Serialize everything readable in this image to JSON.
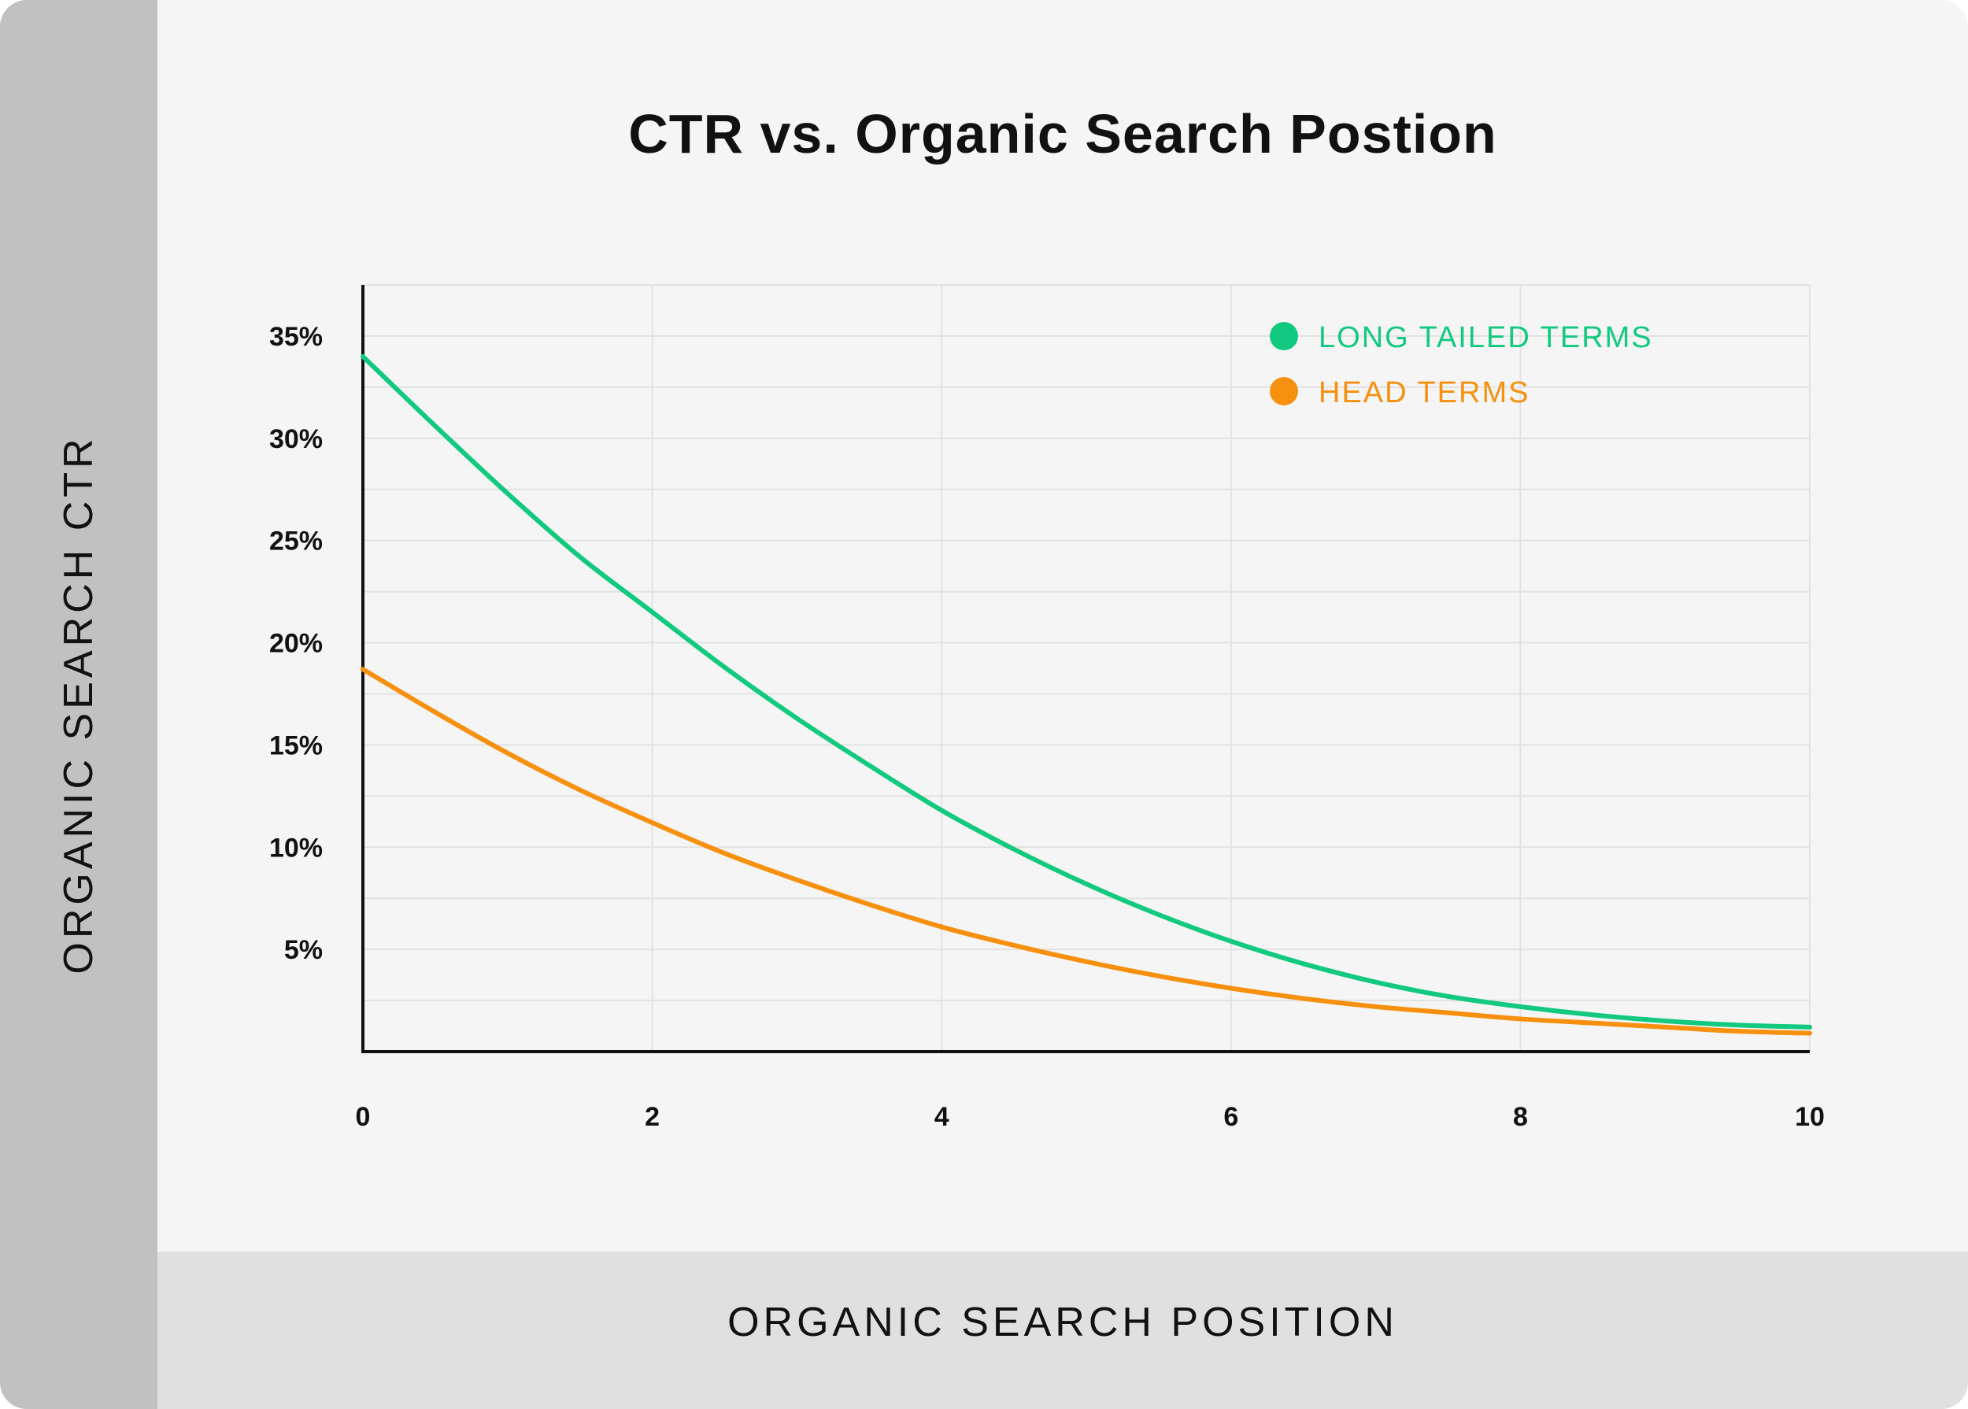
{
  "chart_data": {
    "type": "line",
    "title": "CTR vs. Organic Search Postion",
    "xlabel": "ORGANIC SEARCH POSITION",
    "ylabel": "ORGANIC SEARCH CTR",
    "xlim": [
      0,
      10
    ],
    "ylim": [
      0,
      37.5
    ],
    "x_ticks": [
      "0",
      "2",
      "4",
      "6",
      "8",
      "10"
    ],
    "y_ticks": [
      "35%",
      "30%",
      "25%",
      "20%",
      "15%",
      "10%",
      "5%"
    ],
    "grid": true,
    "legend_position": "top-right",
    "series": [
      {
        "name": "LONG TAILED TERMS",
        "color": "#12c97f",
        "x": [
          0,
          0.5,
          1,
          1.5,
          2,
          2.5,
          3,
          3.5,
          4,
          4.5,
          5,
          5.5,
          6,
          6.5,
          7,
          7.5,
          8,
          8.5,
          9,
          9.5,
          10
        ],
        "y": [
          34.0,
          30.6,
          27.3,
          24.2,
          21.5,
          18.8,
          16.3,
          14.0,
          11.8,
          9.9,
          8.2,
          6.7,
          5.4,
          4.3,
          3.4,
          2.7,
          2.2,
          1.8,
          1.5,
          1.3,
          1.2
        ]
      },
      {
        "name": "HEAD TERMS",
        "color": "#f7900e",
        "x": [
          0,
          0.5,
          1,
          1.5,
          2,
          2.5,
          3,
          3.5,
          4,
          4.5,
          5,
          5.5,
          6,
          6.5,
          7,
          7.5,
          8,
          8.5,
          9,
          9.5,
          10
        ],
        "y": [
          18.7,
          16.6,
          14.6,
          12.8,
          11.2,
          9.7,
          8.4,
          7.2,
          6.1,
          5.2,
          4.4,
          3.7,
          3.1,
          2.6,
          2.2,
          1.9,
          1.6,
          1.4,
          1.2,
          1.0,
          0.9
        ]
      }
    ]
  },
  "colors": {
    "background": "#f5f5f5",
    "y_band": "#c1c1c1",
    "x_band": "#e0e0e0",
    "grid": "#e2e2e2",
    "axis": "#111111"
  }
}
